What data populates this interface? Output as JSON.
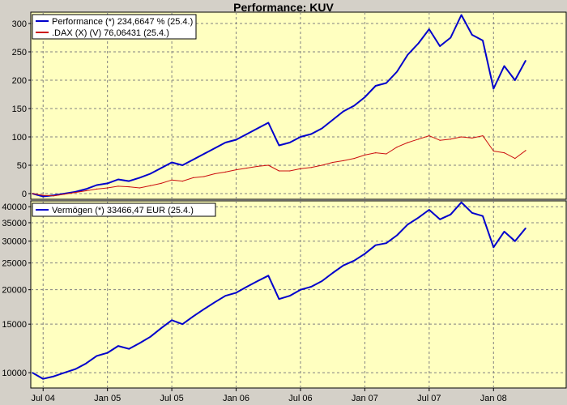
{
  "window": {
    "title": "Performance: KUV"
  },
  "colors": {
    "plot_background": "#ffffc0",
    "frame": "#000000",
    "grid": "#808080",
    "performance_line": "#0000cc",
    "dax_line": "#cc1010",
    "vermoegen_line": "#0000cc"
  },
  "chart_data": [
    {
      "type": "line",
      "title": "Performance: KUV",
      "grid": true,
      "legend_position": "top-left",
      "x": [
        "Jul 04",
        "Jan 05",
        "Jul 05",
        "Jan 06",
        "Jul 06",
        "Jan 07",
        "Jul 07",
        "Jan 08"
      ],
      "ylim": [
        -10,
        320
      ],
      "yticks": [
        0,
        50,
        100,
        150,
        200,
        250,
        300
      ],
      "series": [
        {
          "name": "Performance (*) 234,6647 % (25.4.)",
          "color": "#0000cc",
          "points": [
            [
              "Jun 04",
              0
            ],
            [
              "Jul 04",
              -5
            ],
            [
              "Aug 04",
              -3
            ],
            [
              "Sep 04",
              0
            ],
            [
              "Oct 04",
              3
            ],
            [
              "Nov 04",
              8
            ],
            [
              "Dec 04",
              15
            ],
            [
              "Jan 05",
              18
            ],
            [
              "Feb 05",
              25
            ],
            [
              "Mar 05",
              22
            ],
            [
              "Apr 05",
              28
            ],
            [
              "May 05",
              35
            ],
            [
              "Jun 05",
              45
            ],
            [
              "Jul 05",
              55
            ],
            [
              "Aug 05",
              50
            ],
            [
              "Sep 05",
              60
            ],
            [
              "Oct 05",
              70
            ],
            [
              "Nov 05",
              80
            ],
            [
              "Dec 05",
              90
            ],
            [
              "Jan 06",
              95
            ],
            [
              "Feb 06",
              105
            ],
            [
              "Mar 06",
              115
            ],
            [
              "Apr 06",
              125
            ],
            [
              "May 06",
              85
            ],
            [
              "Jun 06",
              90
            ],
            [
              "Jul 06",
              100
            ],
            [
              "Aug 06",
              105
            ],
            [
              "Sep 06",
              115
            ],
            [
              "Oct 06",
              130
            ],
            [
              "Nov 06",
              145
            ],
            [
              "Dec 06",
              155
            ],
            [
              "Jan 07",
              170
            ],
            [
              "Feb 07",
              190
            ],
            [
              "Mar 07",
              195
            ],
            [
              "Apr 07",
              215
            ],
            [
              "May 07",
              245
            ],
            [
              "Jun 07",
              265
            ],
            [
              "Jul 07",
              290
            ],
            [
              "Aug 07",
              260
            ],
            [
              "Sep 07",
              275
            ],
            [
              "Oct 07",
              315
            ],
            [
              "Nov 07",
              280
            ],
            [
              "Dec 07",
              270
            ],
            [
              "Jan 08",
              185
            ],
            [
              "Feb 08",
              225
            ],
            [
              "Mar 08",
              200
            ],
            [
              "Apr 08",
              234.6647
            ]
          ]
        },
        {
          "name": ".DAX (X) (V) 76,06431 (25.4.)",
          "color": "#cc1010",
          "points": [
            [
              "Jun 04",
              0
            ],
            [
              "Jul 04",
              -3
            ],
            [
              "Aug 04",
              -4
            ],
            [
              "Sep 04",
              -1
            ],
            [
              "Oct 04",
              2
            ],
            [
              "Nov 04",
              5
            ],
            [
              "Dec 04",
              8
            ],
            [
              "Jan 05",
              10
            ],
            [
              "Feb 05",
              13
            ],
            [
              "Mar 05",
              12
            ],
            [
              "Apr 05",
              10
            ],
            [
              "May 05",
              14
            ],
            [
              "Jun 05",
              18
            ],
            [
              "Jul 05",
              24
            ],
            [
              "Aug 05",
              22
            ],
            [
              "Sep 05",
              28
            ],
            [
              "Oct 05",
              30
            ],
            [
              "Nov 05",
              35
            ],
            [
              "Dec 05",
              38
            ],
            [
              "Jan 06",
              42
            ],
            [
              "Feb 06",
              45
            ],
            [
              "Mar 06",
              48
            ],
            [
              "Apr 06",
              50
            ],
            [
              "May 06",
              40
            ],
            [
              "Jun 06",
              40
            ],
            [
              "Jul 06",
              44
            ],
            [
              "Aug 06",
              46
            ],
            [
              "Sep 06",
              50
            ],
            [
              "Oct 06",
              55
            ],
            [
              "Nov 06",
              58
            ],
            [
              "Dec 06",
              62
            ],
            [
              "Jan 07",
              68
            ],
            [
              "Feb 07",
              72
            ],
            [
              "Mar 07",
              70
            ],
            [
              "Apr 07",
              82
            ],
            [
              "May 07",
              90
            ],
            [
              "Jun 07",
              96
            ],
            [
              "Jul 07",
              102
            ],
            [
              "Aug 07",
              94
            ],
            [
              "Sep 07",
              96
            ],
            [
              "Oct 07",
              100
            ],
            [
              "Nov 07",
              98
            ],
            [
              "Dec 07",
              102
            ],
            [
              "Jan 08",
              75
            ],
            [
              "Feb 08",
              72
            ],
            [
              "Mar 08",
              62
            ],
            [
              "Apr 08",
              76.06431
            ]
          ]
        }
      ]
    },
    {
      "type": "line",
      "grid": true,
      "legend_position": "top-left",
      "x": [
        "Jul 04",
        "Jan 05",
        "Jul 05",
        "Jan 06",
        "Jul 06",
        "Jan 07",
        "Jul 07",
        "Jan 08"
      ],
      "yscale": "log",
      "ylim": [
        8800,
        42000
      ],
      "yticks": [
        10000,
        15000,
        20000,
        25000,
        30000,
        35000,
        40000
      ],
      "series": [
        {
          "name": "Vermögen (*) 33466,47 EUR (25.4.)",
          "color": "#0000cc",
          "points": [
            [
              "Jun 04",
              10000
            ],
            [
              "Jul 04",
              9500
            ],
            [
              "Aug 04",
              9700
            ],
            [
              "Sep 04",
              10000
            ],
            [
              "Oct 04",
              10300
            ],
            [
              "Nov 04",
              10800
            ],
            [
              "Dec 04",
              11500
            ],
            [
              "Jan 05",
              11800
            ],
            [
              "Feb 05",
              12500
            ],
            [
              "Mar 05",
              12200
            ],
            [
              "Apr 05",
              12800
            ],
            [
              "May 05",
              13500
            ],
            [
              "Jun 05",
              14500
            ],
            [
              "Jul 05",
              15500
            ],
            [
              "Aug 05",
              15000
            ],
            [
              "Sep 05",
              16000
            ],
            [
              "Oct 05",
              17000
            ],
            [
              "Nov 05",
              18000
            ],
            [
              "Dec 05",
              19000
            ],
            [
              "Jan 06",
              19500
            ],
            [
              "Feb 06",
              20500
            ],
            [
              "Mar 06",
              21500
            ],
            [
              "Apr 06",
              22500
            ],
            [
              "May 06",
              18500
            ],
            [
              "Jun 06",
              19000
            ],
            [
              "Jul 06",
              20000
            ],
            [
              "Aug 06",
              20500
            ],
            [
              "Sep 06",
              21500
            ],
            [
              "Oct 06",
              23000
            ],
            [
              "Nov 06",
              24500
            ],
            [
              "Dec 06",
              25500
            ],
            [
              "Jan 07",
              27000
            ],
            [
              "Feb 07",
              29000
            ],
            [
              "Mar 07",
              29500
            ],
            [
              "Apr 07",
              31500
            ],
            [
              "May 07",
              34500
            ],
            [
              "Jun 07",
              36500
            ],
            [
              "Jul 07",
              39000
            ],
            [
              "Aug 07",
              36000
            ],
            [
              "Sep 07",
              37500
            ],
            [
              "Oct 07",
              41500
            ],
            [
              "Nov 07",
              38000
            ],
            [
              "Dec 07",
              37000
            ],
            [
              "Jan 08",
              28500
            ],
            [
              "Feb 08",
              32500
            ],
            [
              "Mar 08",
              30000
            ],
            [
              "Apr 08",
              33466.47
            ]
          ]
        }
      ]
    }
  ]
}
